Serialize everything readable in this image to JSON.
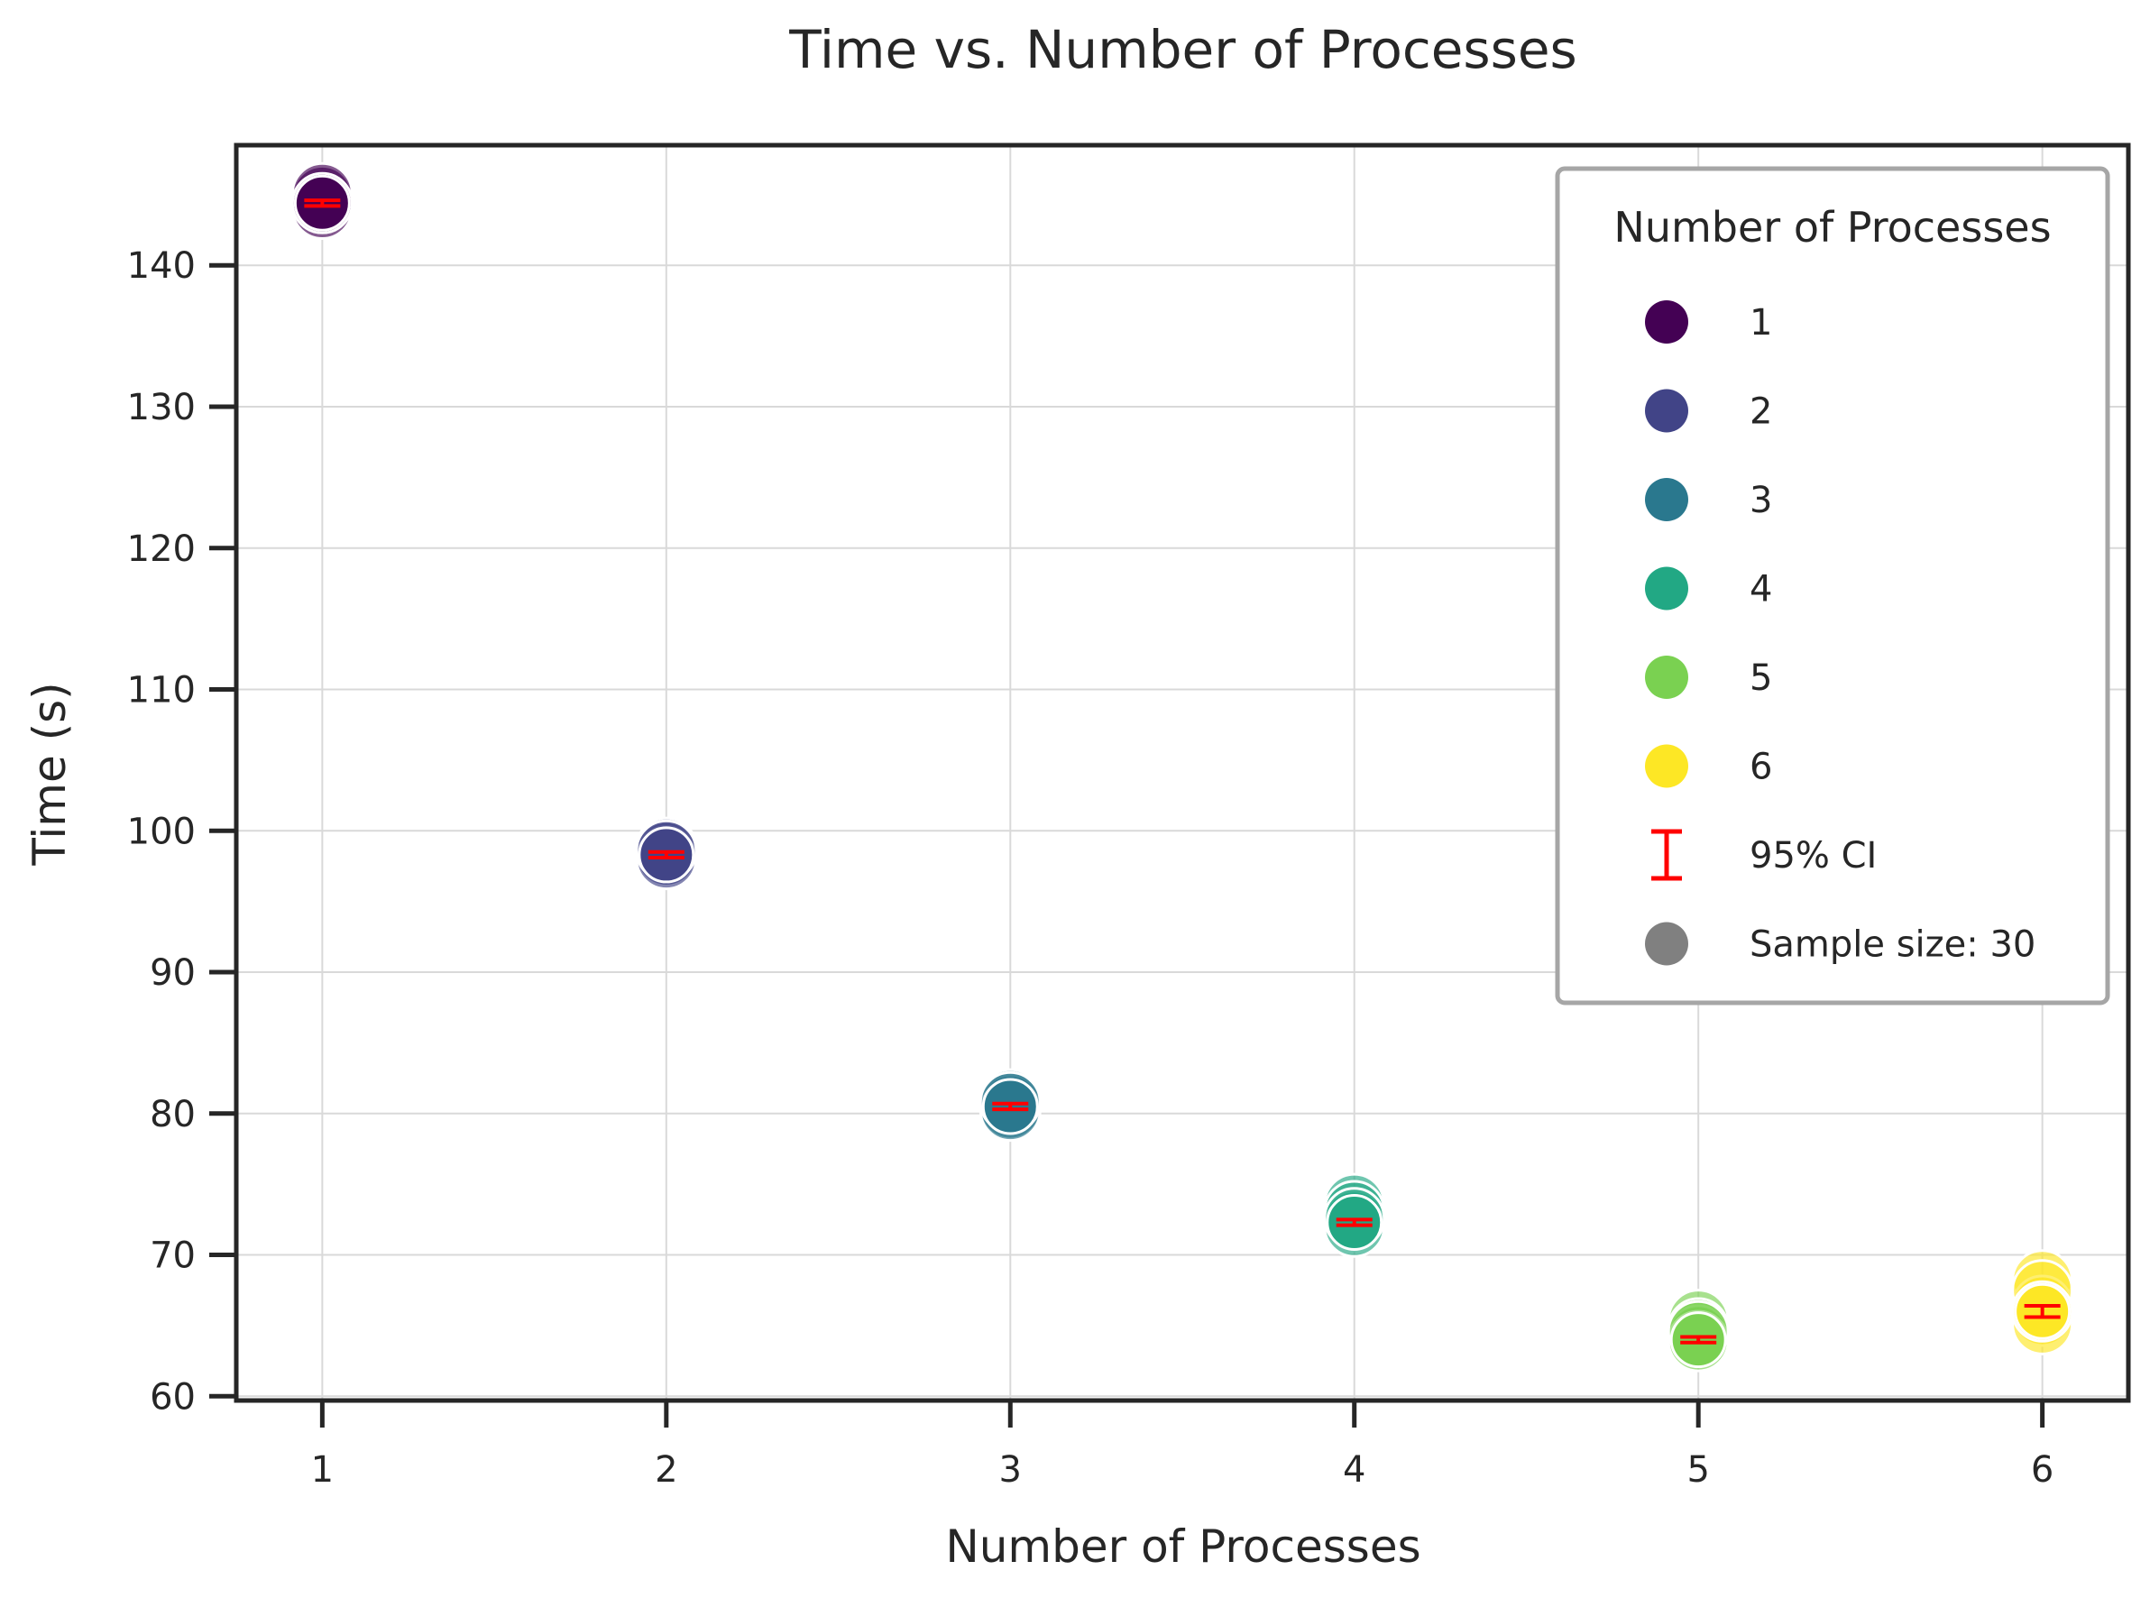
{
  "chart_data": {
    "type": "scatter",
    "title": "Time vs. Number of Processes",
    "xlabel": "Number of Processes",
    "ylabel": "Time (s)",
    "xlim": [
      0.75,
      6.25
    ],
    "ylim": [
      59.7,
      148.5
    ],
    "xticks": [
      1,
      2,
      3,
      4,
      5,
      6
    ],
    "yticks": [
      60,
      70,
      80,
      90,
      100,
      110,
      120,
      130,
      140
    ],
    "grid": true,
    "legend": {
      "title": "Number of Processes",
      "placement": "top-right",
      "entries": [
        {
          "label": "1",
          "color": "#440154",
          "kind": "marker"
        },
        {
          "label": "2",
          "color": "#414487",
          "kind": "marker"
        },
        {
          "label": "3",
          "color": "#2a788e",
          "kind": "marker"
        },
        {
          "label": "4",
          "color": "#22a884",
          "kind": "marker"
        },
        {
          "label": "5",
          "color": "#7ad151",
          "kind": "marker"
        },
        {
          "label": "6",
          "color": "#fde725",
          "kind": "marker"
        },
        {
          "label": "95% CI",
          "color": "#ff0000",
          "kind": "errorbar"
        },
        {
          "label": "Sample size: 30",
          "color": "#808080",
          "kind": "marker"
        }
      ]
    },
    "series": [
      {
        "name": "1",
        "color": "#440154",
        "x": 1,
        "points": [
          144.6,
          144.2,
          144.9,
          144.0,
          145.1,
          144.4
        ],
        "mean": 144.4,
        "ci": [
          144.2,
          144.6
        ]
      },
      {
        "name": "2",
        "color": "#414487",
        "x": 2,
        "points": [
          98.5,
          98.2,
          98.8,
          98.0,
          98.6
        ],
        "mean": 98.3,
        "ci": [
          98.1,
          98.5
        ]
      },
      {
        "name": "3",
        "color": "#2a788e",
        "x": 3,
        "points": [
          80.6,
          80.3,
          81.0,
          80.2,
          80.8
        ],
        "mean": 80.5,
        "ci": [
          80.3,
          80.7
        ]
      },
      {
        "name": "4",
        "color": "#22a884",
        "x": 4,
        "points": [
          73.6,
          72.4,
          73.1,
          72.0,
          72.6
        ],
        "mean": 72.3,
        "ci": [
          72.1,
          72.5
        ]
      },
      {
        "name": "5",
        "color": "#7ad151",
        "x": 5,
        "points": [
          65.4,
          64.3,
          64.8,
          63.9,
          64.6
        ],
        "mean": 64.0,
        "ci": [
          63.8,
          64.2
        ]
      },
      {
        "name": "6",
        "color": "#fde725",
        "x": 6,
        "points": [
          68.2,
          66.4,
          65.7,
          65.1,
          67.5,
          66.0
        ],
        "mean": 66.0,
        "ci": [
          65.6,
          66.4
        ]
      }
    ]
  }
}
